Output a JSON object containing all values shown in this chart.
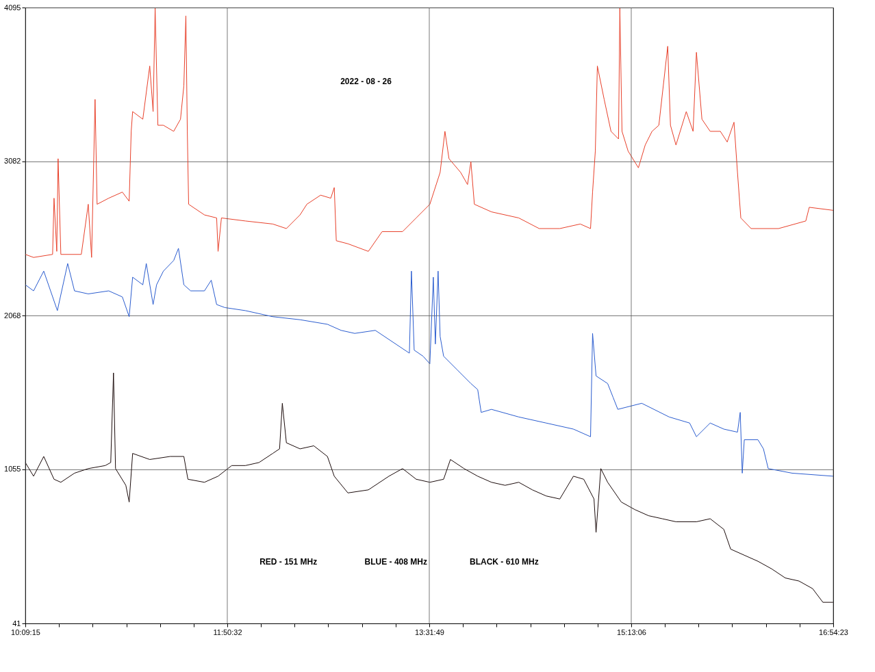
{
  "chart_data": {
    "type": "line",
    "annotations": [
      "2022 - 08 - 26",
      "RED - 151 MHz",
      "BLUE - 408 MHz",
      "BLACK - 610 MHz"
    ],
    "xlim": [
      10.15417,
      16.90639
    ],
    "xticks": [
      {
        "value": 10.15417,
        "label": "10:09:15"
      },
      {
        "value": 10.43551,
        "label": null
      },
      {
        "value": 10.71685,
        "label": null
      },
      {
        "value": 10.9982,
        "label": null
      },
      {
        "value": 11.27954,
        "label": null
      },
      {
        "value": 11.56088,
        "label": null
      },
      {
        "value": 11.84222,
        "label": "11:50:32"
      },
      {
        "value": 12.12356,
        "label": null
      },
      {
        "value": 12.4049,
        "label": null
      },
      {
        "value": 12.68625,
        "label": null
      },
      {
        "value": 12.96759,
        "label": null
      },
      {
        "value": 13.24893,
        "label": null
      },
      {
        "value": 13.53028,
        "label": "13:31:49"
      },
      {
        "value": 13.81162,
        "label": null
      },
      {
        "value": 14.09296,
        "label": null
      },
      {
        "value": 14.37431,
        "label": null
      },
      {
        "value": 14.65565,
        "label": null
      },
      {
        "value": 14.93699,
        "label": null
      },
      {
        "value": 15.21833,
        "label": "15:13:06"
      },
      {
        "value": 15.49967,
        "label": null
      },
      {
        "value": 15.78101,
        "label": null
      },
      {
        "value": 16.06236,
        "label": null
      },
      {
        "value": 16.3437,
        "label": null
      },
      {
        "value": 16.62504,
        "label": null
      },
      {
        "value": 16.90639,
        "label": "16:54:23"
      }
    ],
    "ylim": [
      41,
      4095
    ],
    "yticks": [
      41,
      1055,
      2068,
      3082,
      4095
    ],
    "grid": true,
    "line_style": "solid",
    "series": [
      {
        "color": "#e8402a",
        "x": [
          10.15417,
          10.223,
          10.382,
          10.394,
          10.417,
          10.428,
          10.451,
          10.622,
          10.68,
          10.708,
          10.737,
          10.754,
          10.851,
          10.965,
          11.022,
          11.039,
          11.051,
          11.136,
          11.194,
          11.222,
          11.239,
          11.262,
          11.308,
          11.394,
          11.451,
          11.479,
          11.496,
          11.508,
          11.519,
          11.651,
          11.753,
          11.765,
          11.793,
          11.993,
          12.222,
          12.336,
          12.45,
          12.507,
          12.622,
          12.707,
          12.736,
          12.753,
          12.85,
          13.021,
          13.136,
          13.307,
          13.421,
          13.535,
          13.621,
          13.661,
          13.695,
          13.792,
          13.85,
          13.878,
          13.907,
          14.05,
          14.278,
          14.449,
          14.621,
          14.792,
          14.878,
          14.895,
          14.918,
          14.935,
          14.992,
          15.049,
          15.112,
          15.123,
          15.141,
          15.192,
          15.278,
          15.335,
          15.392,
          15.449,
          15.523,
          15.546,
          15.592,
          15.678,
          15.735,
          15.763,
          15.809,
          15.878,
          15.963,
          16.02,
          16.077,
          16.106,
          16.134,
          16.22,
          16.449,
          16.677,
          16.706,
          16.906
        ],
        "values": [
          2470,
          2450,
          2470,
          2840,
          2490,
          3100,
          2470,
          2470,
          2800,
          2450,
          3490,
          2800,
          2840,
          2880,
          2820,
          3280,
          3410,
          3360,
          3710,
          3410,
          4090,
          3320,
          3320,
          3280,
          3360,
          3580,
          4040,
          3280,
          2800,
          2730,
          2710,
          2490,
          2710,
          2690,
          2670,
          2640,
          2730,
          2800,
          2860,
          2840,
          2910,
          2560,
          2540,
          2490,
          2620,
          2620,
          2710,
          2800,
          3010,
          3280,
          3100,
          3010,
          2930,
          3080,
          2800,
          2750,
          2710,
          2640,
          2640,
          2670,
          2640,
          2880,
          3150,
          3710,
          3490,
          3280,
          3230,
          4090,
          3280,
          3150,
          3040,
          3190,
          3280,
          3320,
          3840,
          3320,
          3190,
          3410,
          3280,
          3800,
          3360,
          3280,
          3280,
          3210,
          3340,
          3010,
          2710,
          2640,
          2640,
          2690,
          2780,
          2760
        ]
      },
      {
        "color": "#2a5ccf",
        "x": [
          10.15417,
          10.223,
          10.308,
          10.365,
          10.422,
          10.508,
          10.565,
          10.68,
          10.851,
          10.965,
          11.022,
          11.051,
          11.136,
          11.165,
          11.222,
          11.251,
          11.308,
          11.394,
          11.434,
          11.479,
          11.536,
          11.651,
          11.708,
          11.753,
          11.822,
          11.993,
          12.222,
          12.45,
          12.679,
          12.793,
          12.907,
          13.079,
          13.25,
          13.364,
          13.381,
          13.404,
          13.478,
          13.535,
          13.564,
          13.581,
          13.604,
          13.621,
          13.65,
          13.764,
          13.878,
          13.935,
          13.964,
          14.05,
          14.278,
          14.507,
          14.735,
          14.878,
          14.895,
          14.924,
          15.021,
          15.066,
          15.106,
          15.306,
          15.535,
          15.706,
          15.763,
          15.878,
          15.992,
          16.106,
          16.129,
          16.146,
          16.163,
          16.277,
          16.323,
          16.363,
          16.563,
          16.906
        ],
        "values": [
          2270,
          2230,
          2360,
          2230,
          2100,
          2410,
          2230,
          2210,
          2230,
          2190,
          2060,
          2320,
          2270,
          2410,
          2140,
          2270,
          2360,
          2430,
          2510,
          2270,
          2230,
          2230,
          2300,
          2140,
          2120,
          2100,
          2060,
          2040,
          2010,
          1970,
          1950,
          1970,
          1880,
          1820,
          2360,
          1840,
          1800,
          1750,
          2320,
          1880,
          2360,
          1930,
          1800,
          1710,
          1620,
          1580,
          1430,
          1450,
          1400,
          1360,
          1320,
          1270,
          1950,
          1670,
          1620,
          1530,
          1450,
          1490,
          1400,
          1360,
          1270,
          1360,
          1320,
          1300,
          1430,
          1030,
          1250,
          1250,
          1190,
          1060,
          1030,
          1010
        ]
      },
      {
        "color": "#1a0a0a",
        "x": [
          10.15417,
          10.223,
          10.308,
          10.394,
          10.451,
          10.565,
          10.68,
          10.822,
          10.868,
          10.891,
          10.908,
          10.994,
          11.022,
          11.051,
          11.194,
          11.365,
          11.479,
          11.513,
          11.651,
          11.765,
          11.879,
          11.993,
          12.107,
          12.222,
          12.279,
          12.302,
          12.336,
          12.45,
          12.565,
          12.679,
          12.736,
          12.85,
          13.021,
          13.193,
          13.307,
          13.421,
          13.535,
          13.65,
          13.707,
          13.821,
          13.935,
          14.05,
          14.164,
          14.278,
          14.392,
          14.507,
          14.621,
          14.735,
          14.821,
          14.907,
          14.924,
          14.964,
          15.021,
          15.135,
          15.249,
          15.363,
          15.478,
          15.592,
          15.763,
          15.878,
          15.992,
          16.049,
          16.163,
          16.277,
          16.392,
          16.506,
          16.62,
          16.734,
          16.82,
          16.906
        ],
        "values": [
          1100,
          1010,
          1140,
          990,
          970,
          1030,
          1060,
          1080,
          1100,
          1690,
          1060,
          950,
          840,
          1160,
          1120,
          1140,
          1140,
          990,
          970,
          1010,
          1080,
          1080,
          1100,
          1160,
          1190,
          1490,
          1230,
          1190,
          1210,
          1140,
          1010,
          900,
          920,
          1010,
          1060,
          990,
          970,
          990,
          1120,
          1060,
          1010,
          970,
          950,
          970,
          920,
          880,
          860,
          1010,
          990,
          860,
          640,
          1060,
          970,
          840,
          790,
          750,
          730,
          710,
          710,
          730,
          660,
          530,
          490,
          450,
          400,
          340,
          320,
          270,
          180,
          180
        ]
      }
    ]
  }
}
